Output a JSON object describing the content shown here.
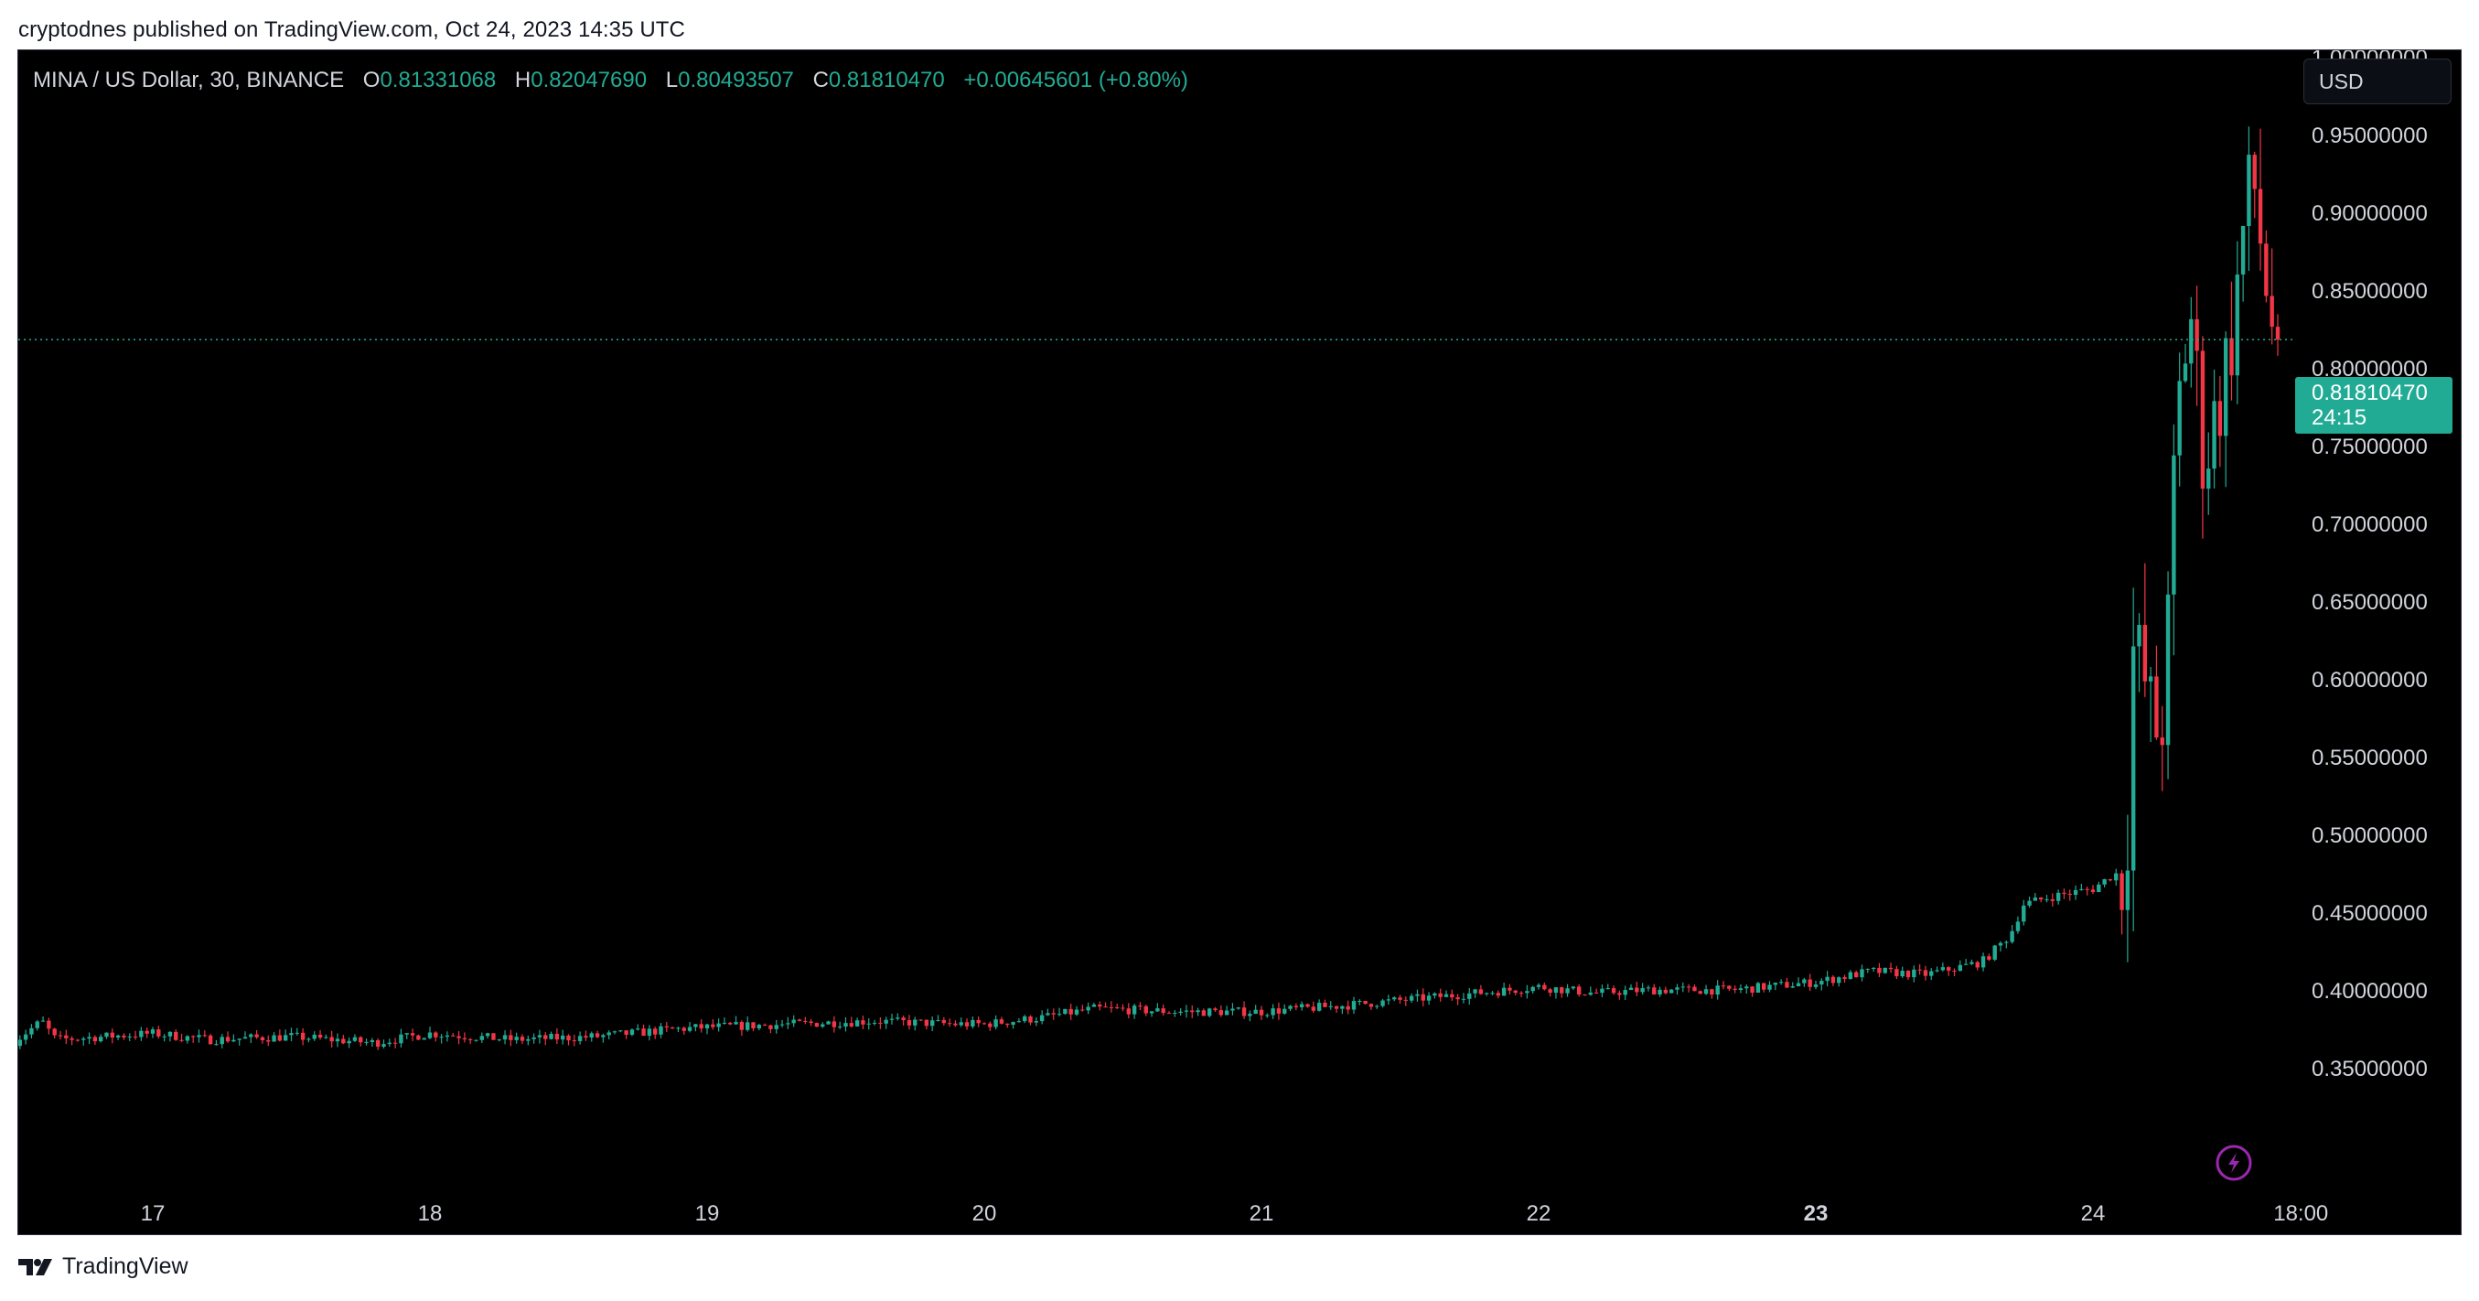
{
  "header": {
    "published_text": "cryptodnes published on TradingView.com, Oct 24, 2023 14:35 UTC"
  },
  "legend": {
    "symbol": "MINA / US Dollar, 30, BINANCE",
    "o_label": "O",
    "o_value": "0.81331068",
    "h_label": "H",
    "h_value": "0.82047690",
    "l_label": "L",
    "l_value": "0.80493507",
    "c_label": "C",
    "c_value": "0.81810470",
    "change": "+0.00645601 (+0.80%)"
  },
  "currency_button": "USD",
  "price_tag": {
    "price": "0.81810470",
    "countdown": "24:15"
  },
  "footer": {
    "brand": "TradingView"
  },
  "colors": {
    "up": "#22ab94",
    "down": "#f23645",
    "background": "#000000",
    "text": "#d1d4dc",
    "lightning": "#9c27b0"
  },
  "chart_data": {
    "type": "candlestick",
    "timeframe": "30",
    "ylim": [
      0.31,
      1.0
    ],
    "y_ticks": [
      "0.35000000",
      "0.40000000",
      "0.45000000",
      "0.50000000",
      "0.55000000",
      "0.60000000",
      "0.65000000",
      "0.70000000",
      "0.75000000",
      "0.80000000",
      "0.85000000",
      "0.90000000",
      "0.95000000",
      "1.00000000"
    ],
    "y_tick_values": [
      0.35,
      0.4,
      0.45,
      0.5,
      0.55,
      0.6,
      0.65,
      0.7,
      0.75,
      0.8,
      0.85,
      0.9,
      0.95,
      1.0
    ],
    "x_ticks": [
      {
        "label": "17",
        "day": 17.0,
        "bold": false
      },
      {
        "label": "18",
        "day": 18.0,
        "bold": false
      },
      {
        "label": "19",
        "day": 19.0,
        "bold": false
      },
      {
        "label": "20",
        "day": 20.0,
        "bold": false
      },
      {
        "label": "21",
        "day": 21.0,
        "bold": false
      },
      {
        "label": "22",
        "day": 22.0,
        "bold": false
      },
      {
        "label": "23",
        "day": 23.0,
        "bold": true
      },
      {
        "label": "24",
        "day": 24.0,
        "bold": false
      },
      {
        "label": "18:00",
        "day": 24.75,
        "bold": false
      }
    ],
    "x_start_day": 16.5,
    "last_close": 0.8181047,
    "close_path": [
      [
        16.5,
        0.367
      ],
      [
        16.6,
        0.38
      ],
      [
        16.65,
        0.368
      ],
      [
        17.0,
        0.372
      ],
      [
        17.2,
        0.368
      ],
      [
        17.5,
        0.37
      ],
      [
        17.8,
        0.366
      ],
      [
        18.0,
        0.372
      ],
      [
        18.3,
        0.368
      ],
      [
        18.6,
        0.37
      ],
      [
        18.9,
        0.375
      ],
      [
        19.0,
        0.376
      ],
      [
        19.3,
        0.378
      ],
      [
        19.6,
        0.38
      ],
      [
        19.9,
        0.378
      ],
      [
        20.0,
        0.378
      ],
      [
        20.2,
        0.382
      ],
      [
        20.4,
        0.388
      ],
      [
        20.7,
        0.386
      ],
      [
        21.0,
        0.386
      ],
      [
        21.3,
        0.39
      ],
      [
        21.6,
        0.395
      ],
      [
        21.9,
        0.4
      ],
      [
        22.0,
        0.402
      ],
      [
        22.2,
        0.398
      ],
      [
        22.4,
        0.4
      ],
      [
        22.7,
        0.4
      ],
      [
        23.0,
        0.405
      ],
      [
        23.2,
        0.412
      ],
      [
        23.4,
        0.41
      ],
      [
        23.6,
        0.418
      ],
      [
        23.7,
        0.435
      ],
      [
        23.75,
        0.455
      ],
      [
        23.85,
        0.46
      ],
      [
        24.0,
        0.465
      ],
      [
        24.08,
        0.475
      ],
      [
        24.12,
        0.47
      ],
      [
        24.14,
        0.62
      ],
      [
        24.18,
        0.605
      ],
      [
        24.22,
        0.565
      ],
      [
        24.26,
        0.58
      ],
      [
        24.3,
        0.76
      ],
      [
        24.35,
        0.84
      ],
      [
        24.4,
        0.74
      ],
      [
        24.45,
        0.775
      ],
      [
        24.5,
        0.82
      ],
      [
        24.55,
        0.9
      ],
      [
        24.58,
        0.92
      ],
      [
        24.62,
        0.86
      ],
      [
        24.66,
        0.815
      ],
      [
        24.68,
        0.8181
      ]
    ]
  }
}
